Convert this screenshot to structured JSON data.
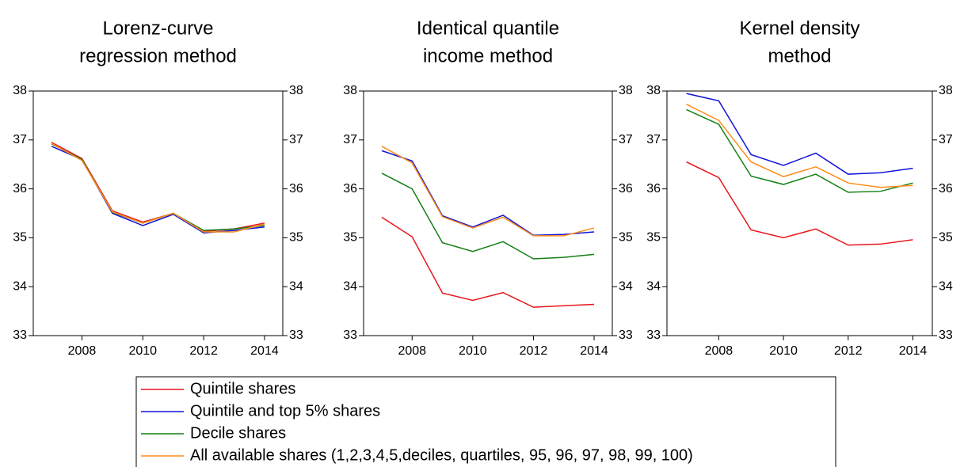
{
  "chart_data": [
    {
      "type": "line",
      "title": [
        "Lorenz-curve",
        "regression method"
      ],
      "x": [
        2007,
        2008,
        2009,
        2010,
        2011,
        2012,
        2013,
        2014
      ],
      "xlim": [
        2006.4,
        2014.6
      ],
      "xticks": [
        2008,
        2010,
        2012,
        2014
      ],
      "ylim": [
        33,
        38
      ],
      "yticks": [
        33,
        34,
        35,
        36,
        37,
        38
      ],
      "series": [
        {
          "name": "Quintile shares",
          "color": "#e8161b",
          "values": [
            36.95,
            36.62,
            35.55,
            35.32,
            35.5,
            35.13,
            35.18,
            35.3
          ]
        },
        {
          "name": "Quintile and top 5% shares",
          "color": "#1414d8",
          "values": [
            36.87,
            36.6,
            35.5,
            35.25,
            35.48,
            35.1,
            35.15,
            35.22
          ]
        },
        {
          "name": "Decile shares",
          "color": "#168016",
          "values": [
            36.92,
            36.6,
            35.52,
            35.3,
            35.5,
            35.15,
            35.18,
            35.25
          ]
        },
        {
          "name": "All available shares (1,2,3,4,5,deciles, quartiles, 95, 96, 97, 98, 99, 100)",
          "color": "#ff8c1a",
          "values": [
            36.93,
            36.58,
            35.53,
            35.3,
            35.5,
            35.12,
            35.12,
            35.28
          ]
        }
      ]
    },
    {
      "type": "line",
      "title": [
        "Identical quantile",
        "income method"
      ],
      "x": [
        2007,
        2008,
        2009,
        2010,
        2011,
        2012,
        2013,
        2014
      ],
      "xlim": [
        2006.4,
        2014.6
      ],
      "xticks": [
        2008,
        2010,
        2012,
        2014
      ],
      "ylim": [
        33,
        38
      ],
      "yticks": [
        33,
        34,
        35,
        36,
        37,
        38
      ],
      "series": [
        {
          "color": "#e8161b",
          "values": [
            35.42,
            35.02,
            33.87,
            33.72,
            33.88,
            33.58,
            33.61,
            33.64
          ]
        },
        {
          "color": "#1414d8",
          "values": [
            36.78,
            36.57,
            35.45,
            35.22,
            35.46,
            35.05,
            35.07,
            35.12
          ]
        },
        {
          "color": "#168016",
          "values": [
            36.32,
            36.0,
            34.9,
            34.72,
            34.92,
            34.57,
            34.6,
            34.66
          ]
        },
        {
          "color": "#ff8c1a",
          "values": [
            36.87,
            36.53,
            35.43,
            35.2,
            35.42,
            35.04,
            35.04,
            35.2
          ]
        }
      ]
    },
    {
      "type": "line",
      "title": [
        "Kernel density",
        "method"
      ],
      "x": [
        2007,
        2008,
        2009,
        2010,
        2011,
        2012,
        2013,
        2014
      ],
      "xlim": [
        2006.4,
        2014.6
      ],
      "xticks": [
        2008,
        2010,
        2012,
        2014
      ],
      "ylim": [
        33,
        38
      ],
      "yticks": [
        33,
        34,
        35,
        36,
        37,
        38
      ],
      "series": [
        {
          "color": "#e8161b",
          "values": [
            36.55,
            36.23,
            35.16,
            35.0,
            35.18,
            34.85,
            34.87,
            34.96
          ]
        },
        {
          "color": "#1414d8",
          "values": [
            37.95,
            37.8,
            36.7,
            36.48,
            36.73,
            36.3,
            36.33,
            36.42
          ]
        },
        {
          "color": "#168016",
          "values": [
            37.62,
            37.32,
            36.26,
            36.09,
            36.3,
            35.93,
            35.95,
            36.12
          ]
        },
        {
          "color": "#ff8c1a",
          "values": [
            37.73,
            37.4,
            36.55,
            36.25,
            36.45,
            36.12,
            36.03,
            36.07
          ]
        }
      ]
    }
  ]
}
